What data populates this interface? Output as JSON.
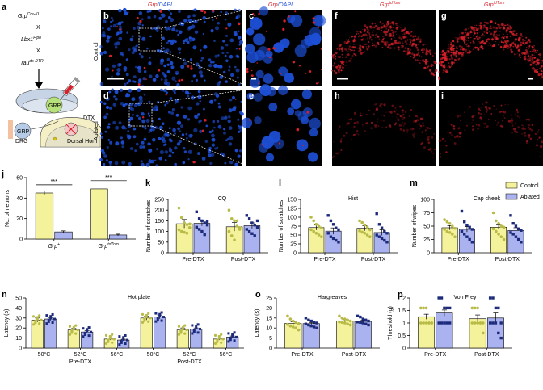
{
  "colors": {
    "control_fill": "#f4f29a",
    "control_dot": "#b8bb47",
    "ablated_fill": "#aab3ef",
    "ablated_dot": "#1c2a7c",
    "red": "#d8202a",
    "blue": "#1d4fd6"
  },
  "panel_letters": {
    "a": "a",
    "b": "b",
    "c": "c",
    "d": "d",
    "e": "e",
    "f": "f",
    "g": "g",
    "h": "h",
    "i": "i",
    "j": "j",
    "k": "k",
    "l": "l",
    "m": "m",
    "n": "n",
    "o": "o",
    "p": "p"
  },
  "schematic": {
    "line1": "Grp",
    "line1_sup": "Cre-KI",
    "cross1": "X",
    "line2": "Lbx1",
    "line2_sup": "Flpo",
    "cross2": "X",
    "line3": "Tau",
    "line3_sup": "ds-DTR",
    "dtx": "DTX",
    "grp_cell": "GRP",
    "drg_cell": "GRP",
    "drg_label": "DRG",
    "dorsal_horn": "Dorsal Horn"
  },
  "image_headers": {
    "grp_dapi_1": "Grp",
    "grp_dapi_sep1": "/DAPI",
    "grp_dapi_2": "Grp",
    "grp_dapi_sep2": "/DAPI",
    "grp_tdtom_1": "Grp",
    "grp_tdtom_sup_1": "tdTom",
    "grp_tdtom_2": "Grp",
    "grp_tdtom_sup_2": "tdTom"
  },
  "row_labels": {
    "control": "Control",
    "ablated": "Ablated"
  },
  "legend": {
    "control": "Control",
    "ablated": "Ablated"
  },
  "significance": "***",
  "chart_data": [
    {
      "panel": "j",
      "type": "bar",
      "categories": [
        "Grp+",
        "Grp tdTom"
      ],
      "category_parts": [
        {
          "base": "Grp",
          "sup": "+"
        },
        {
          "base": "Grp",
          "sup": "tdTom"
        }
      ],
      "ylabel": "No. of neurons",
      "ylim": [
        0,
        60
      ],
      "yticks": [
        0,
        20,
        40,
        60
      ],
      "series": [
        {
          "name": "Control",
          "values": [
            45,
            49
          ],
          "errors": [
            2,
            2
          ]
        },
        {
          "name": "Ablated",
          "values": [
            7,
            4
          ],
          "errors": [
            1,
            0.8
          ]
        }
      ]
    },
    {
      "panel": "k",
      "type": "bar",
      "title": "CQ",
      "categories": [
        "Pre-DTX",
        "Post-DTX"
      ],
      "ylabel": "Number of scratches",
      "ylim": [
        0,
        250
      ],
      "yticks": [
        0,
        50,
        100,
        150,
        200,
        250
      ],
      "series": [
        {
          "name": "Control",
          "values": [
            136,
            122
          ],
          "errors": [
            20,
            20
          ],
          "points": [
            [
              210,
              165,
              140,
              132,
              118,
              108,
              100,
              96,
              92,
              135
            ],
            [
              200,
              160,
              150,
              125,
              118,
              100,
              80,
              60,
              150,
              110
            ]
          ]
        },
        {
          "name": "Ablated",
          "values": [
            138,
            127
          ],
          "errors": [
            12,
            13
          ],
          "points": [
            [
              192,
              160,
              150,
              140,
              130,
              120,
              110,
              100,
              85,
              145
            ],
            [
              175,
              160,
              140,
              130,
              120,
              110,
              100,
              90,
              80,
              150
            ]
          ]
        }
      ]
    },
    {
      "panel": "l",
      "type": "bar",
      "title": "Hist",
      "categories": [
        "Pre-DTX",
        "Post-DTX"
      ],
      "ylabel": "Number of scratches",
      "ylim": [
        0,
        150
      ],
      "yticks": [
        0,
        25,
        50,
        75,
        100,
        125,
        150
      ],
      "series": [
        {
          "name": "Control",
          "values": [
            71,
            69
          ],
          "errors": [
            7,
            7
          ],
          "points": [
            [
              100,
              90,
              80,
              74,
              70,
              65,
              60,
              55,
              50,
              45
            ],
            [
              90,
              85,
              78,
              72,
              65,
              62,
              58,
              55,
              50,
              45
            ]
          ]
        },
        {
          "name": "Ablated",
          "values": [
            61,
            57
          ],
          "errors": [
            9,
            8
          ],
          "points": [
            [
              105,
              90,
              80,
              70,
              65,
              55,
              45,
              40,
              35,
              30
            ],
            [
              110,
              80,
              70,
              60,
              55,
              50,
              45,
              40,
              35,
              30
            ]
          ]
        }
      ]
    },
    {
      "panel": "m",
      "type": "bar",
      "title": "Cap cheek",
      "categories": [
        "Pre-DTX",
        "Post-DTX"
      ],
      "ylabel": "Number of wipes",
      "ylim": [
        0,
        100
      ],
      "yticks": [
        0,
        25,
        50,
        75,
        100
      ],
      "series": [
        {
          "name": "Control",
          "values": [
            47,
            48
          ],
          "errors": [
            4,
            4
          ],
          "points": [
            [
              62,
              58,
              55,
              50,
              46,
              44,
              40,
              38,
              35,
              30
            ],
            [
              75,
              60,
              55,
              50,
              48,
              45,
              40,
              35,
              30,
              25
            ]
          ]
        },
        {
          "name": "Ablated",
          "values": [
            44,
            42
          ],
          "errors": [
            5,
            5
          ],
          "points": [
            [
              78,
              58,
              52,
              48,
              44,
              40,
              35,
              30,
              25,
              20
            ],
            [
              70,
              55,
              50,
              45,
              42,
              38,
              35,
              30,
              25,
              20
            ]
          ]
        }
      ]
    },
    {
      "panel": "n",
      "type": "bar",
      "title": "Hot plate",
      "categories": [
        "50°C",
        "52°C",
        "56°C",
        "50°C",
        "52°C",
        "56°C"
      ],
      "groups": [
        "Pre-DTX",
        "Post-DTX"
      ],
      "ylabel": "Latency (s)",
      "ylim": [
        0,
        50
      ],
      "yticks": [
        0,
        10,
        20,
        30,
        40,
        50
      ],
      "series": [
        {
          "name": "Control",
          "values": [
            28,
            18,
            9,
            30,
            18,
            9
          ],
          "errors": [
            2,
            1.5,
            1,
            2,
            2,
            1
          ]
        },
        {
          "name": "Ablated",
          "values": [
            29,
            16,
            8,
            31,
            19,
            11
          ],
          "errors": [
            1.5,
            1.5,
            0.8,
            2,
            1,
            1
          ]
        }
      ]
    },
    {
      "panel": "o",
      "type": "bar",
      "title": "Hargreaves",
      "categories": [
        "Pre-DTX",
        "Post-DTX"
      ],
      "ylabel": "Latency (s)",
      "ylim": [
        0,
        25
      ],
      "yticks": [
        0,
        5,
        10,
        15,
        20,
        25
      ],
      "series": [
        {
          "name": "Control",
          "values": [
            12.3,
            13.6
          ],
          "errors": [
            0.8,
            0.6
          ],
          "points": [
            [
              16,
              14.5,
              13.5,
              12.8,
              12.2,
              11.8,
              11,
              10.5,
              10,
              9
            ],
            [
              16,
              15,
              14.5,
              14,
              13.5,
              13,
              12.8,
              12.5,
              12,
              11.5
            ]
          ]
        },
        {
          "name": "Ablated",
          "values": [
            12.2,
            13.3
          ],
          "errors": [
            0.5,
            0.5
          ],
          "points": [
            [
              15,
              14,
              13.5,
              13,
              12.5,
              12,
              11.5,
              11,
              10.5,
              10
            ],
            [
              16,
              15.5,
              14.5,
              14,
              13.5,
              13,
              12.8,
              12.5,
              12,
              11.5
            ]
          ]
        }
      ]
    },
    {
      "panel": "p",
      "type": "bar",
      "title": "Von Frey",
      "categories": [
        "Pre-DTX",
        "Post-DTX"
      ],
      "ylabel": "Threshold (g)",
      "ylim": [
        0,
        2
      ],
      "yticks": [
        0,
        0.5,
        1,
        1.5,
        2
      ],
      "series": [
        {
          "name": "Control",
          "values": [
            1.25,
            1.17
          ],
          "errors": [
            0.1,
            0.15
          ],
          "points": [
            [
              1.6,
              1.6,
              1.6,
              1,
              1,
              1,
              1,
              1,
              1,
              1
            ],
            [
              1.6,
              1.6,
              1.6,
              1,
              1,
              1,
              1,
              1,
              1,
              0.6
            ]
          ]
        },
        {
          "name": "Ablated",
          "values": [
            1.4,
            1.2
          ],
          "errors": [
            0.12,
            0.2
          ],
          "points": [
            [
              2,
              2,
              1.6,
              1.6,
              1.6,
              1,
              1,
              1,
              1,
              1
            ],
            [
              2,
              2,
              1.6,
              1.6,
              1,
              1,
              1,
              1,
              0.6,
              0.4
            ]
          ]
        }
      ]
    }
  ]
}
